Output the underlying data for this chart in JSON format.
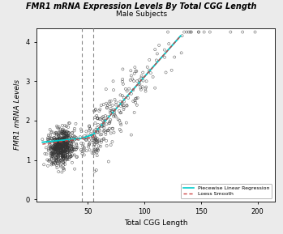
{
  "title_italic": "FMR1",
  "title_rest": " mRNA Expression Levels By Total CGG Length",
  "subtitle": "Male Subjects",
  "xlabel": "Total CGG Length",
  "ylabel": "FMR1 mRNA Levels",
  "xlim": [
    5,
    215
  ],
  "ylim": [
    -0.05,
    4.35
  ],
  "xticks": [
    50,
    100,
    150,
    200
  ],
  "yticks": [
    0,
    1,
    2,
    3,
    4
  ],
  "vline1": 45,
  "vline2": 55,
  "scatter_color": "black",
  "line1_color": "#00CCCC",
  "line2_color": "#CC4444",
  "legend_labels": [
    "Piecewise Linear Regression",
    "Loess Smooth"
  ],
  "seed": 42,
  "fig_bg": "#F0F0F0"
}
